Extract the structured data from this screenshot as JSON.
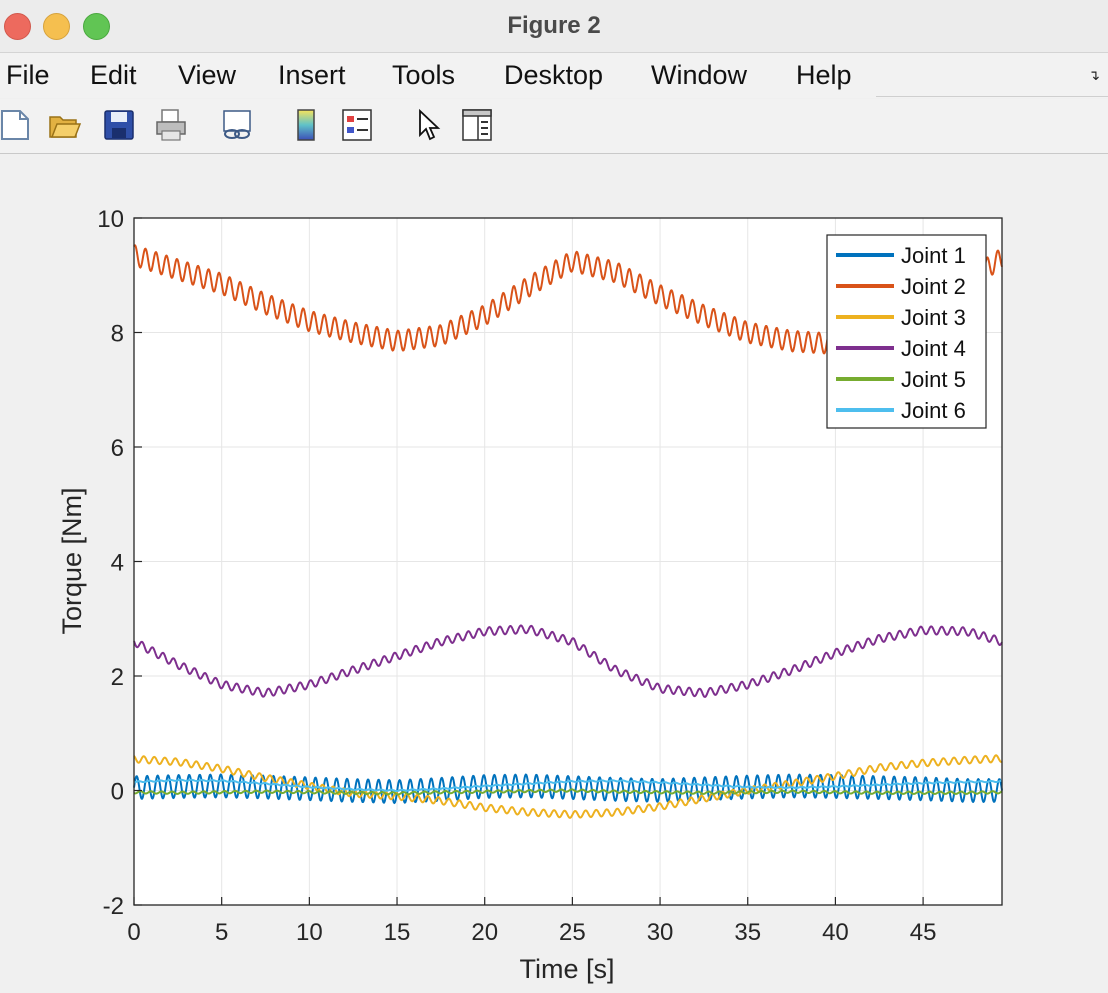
{
  "window": {
    "title": "Figure 2"
  },
  "menu": [
    "File",
    "Edit",
    "View",
    "Insert",
    "Tools",
    "Desktop",
    "Window",
    "Help"
  ],
  "toolbar": {
    "icons": [
      "new-figure-icon",
      "open-file-icon",
      "save-icon",
      "print-icon",
      "link-plot-icon",
      "colorbar-icon",
      "legend-icon",
      "pointer-icon",
      "property-inspector-icon"
    ]
  },
  "chart_data": {
    "type": "line",
    "xlabel": "Time [s]",
    "ylabel": "Torque [Nm]",
    "xlim": [
      0,
      49.5
    ],
    "ylim": [
      -2,
      10
    ],
    "x_ticks": [
      "0",
      "5",
      "10",
      "15",
      "20",
      "25",
      "30",
      "35",
      "40",
      "45"
    ],
    "y_ticks": [
      "-2",
      "0",
      "2",
      "4",
      "6",
      "8",
      "10"
    ],
    "grid": true,
    "legend_position": "top-right",
    "x": [
      0,
      2.5,
      5,
      7.5,
      10,
      12.5,
      15,
      17.5,
      20,
      22.5,
      25,
      27.5,
      30,
      32.5,
      35,
      37.5,
      40,
      42.5,
      45,
      47.5,
      49.5
    ],
    "series": [
      {
        "name": "Joint 1",
        "color": "#0072BD",
        "oscillation": 0.2,
        "values": [
          0.05,
          0.07,
          0.08,
          0.06,
          0.03,
          0.0,
          -0.02,
          0.02,
          0.07,
          0.08,
          0.05,
          0.02,
          0.0,
          0.03,
          0.06,
          0.08,
          0.07,
          0.05,
          0.03,
          0.0,
          0.0
        ]
      },
      {
        "name": "Joint 2",
        "color": "#D95319",
        "oscillation": 0.18,
        "values": [
          9.35,
          9.1,
          8.85,
          8.5,
          8.2,
          8.0,
          7.85,
          7.95,
          8.3,
          8.8,
          9.25,
          9.05,
          8.65,
          8.3,
          8.0,
          7.85,
          7.8,
          8.0,
          8.4,
          8.9,
          9.3
        ]
      },
      {
        "name": "Joint 3",
        "color": "#EDB120",
        "oscillation": 0.06,
        "values": [
          0.55,
          0.5,
          0.38,
          0.22,
          0.08,
          -0.05,
          -0.1,
          -0.18,
          -0.3,
          -0.38,
          -0.42,
          -0.38,
          -0.28,
          -0.14,
          0.0,
          0.12,
          0.25,
          0.4,
          0.48,
          0.53,
          0.56
        ]
      },
      {
        "name": "Joint 4",
        "color": "#7E2F8E",
        "oscillation": 0.07,
        "values": [
          2.6,
          2.2,
          1.85,
          1.7,
          1.85,
          2.1,
          2.35,
          2.6,
          2.78,
          2.82,
          2.6,
          2.1,
          1.78,
          1.7,
          1.85,
          2.1,
          2.4,
          2.65,
          2.8,
          2.78,
          2.6
        ]
      },
      {
        "name": "Joint 5",
        "color": "#77AC30",
        "oscillation": 0.02,
        "values": [
          -0.03,
          -0.04,
          -0.03,
          -0.02,
          -0.03,
          -0.04,
          -0.05,
          -0.03,
          -0.02,
          -0.01,
          0.0,
          -0.02,
          -0.03,
          -0.04,
          -0.03,
          -0.02,
          -0.03,
          -0.04,
          -0.04,
          -0.04,
          -0.03
        ]
      },
      {
        "name": "Joint 6",
        "color": "#4DBEEE",
        "oscillation": 0.01,
        "values": [
          0.15,
          0.18,
          0.17,
          0.12,
          0.06,
          0.02,
          0.0,
          0.03,
          0.08,
          0.12,
          0.16,
          0.17,
          0.14,
          0.1,
          0.06,
          0.05,
          0.07,
          0.1,
          0.13,
          0.15,
          0.16
        ]
      }
    ]
  }
}
